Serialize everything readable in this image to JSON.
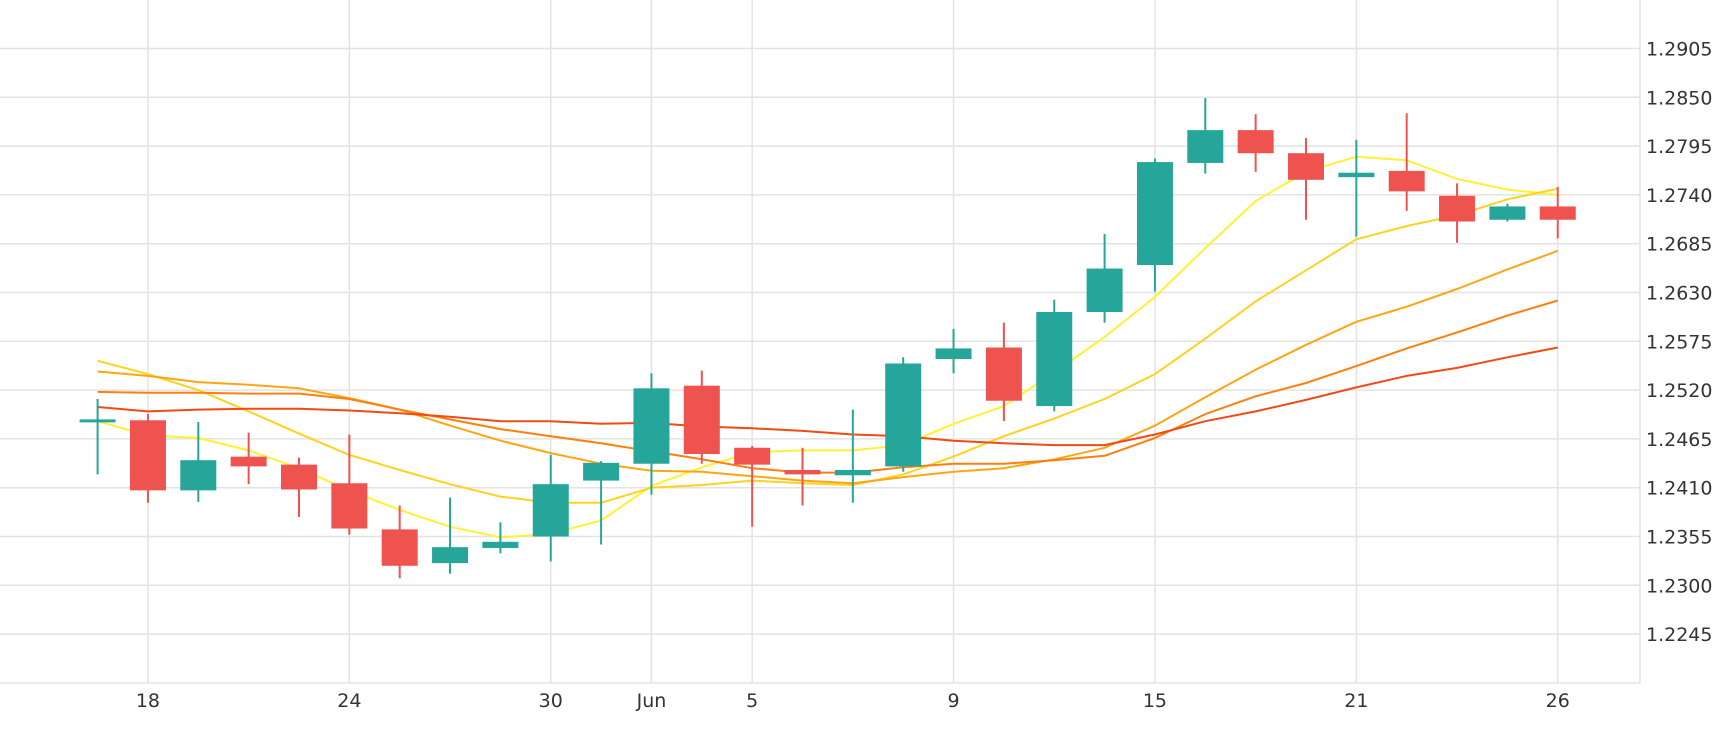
{
  "chart_data": {
    "type": "candlestick",
    "title": "",
    "xlabel": "",
    "ylabel": "",
    "ylim": [
      1.219,
      1.296
    ],
    "grid": true,
    "y_axis_position": "right",
    "y_ticks": [
      "1.2245",
      "1.2300",
      "1.2355",
      "1.2410",
      "1.2465",
      "1.2520",
      "1.2575",
      "1.2630",
      "1.2685",
      "1.2740",
      "1.2795",
      "1.2850",
      "1.2905"
    ],
    "x_ticks": [
      {
        "label": "18",
        "day": 1
      },
      {
        "label": "24",
        "day": 5
      },
      {
        "label": "30",
        "day": 9
      },
      {
        "label": "Jun",
        "day": 11
      },
      {
        "label": "5",
        "day": 13
      },
      {
        "label": "9",
        "day": 17
      },
      {
        "label": "15",
        "day": 21
      },
      {
        "label": "21",
        "day": 25
      },
      {
        "label": "26",
        "day": 29
      }
    ],
    "colors": {
      "up": "#26a69a",
      "down": "#ef5350",
      "grid": "#e3e3e3"
    },
    "candles": [
      {
        "day": 0,
        "open": 1.2487,
        "high": 1.251,
        "low": 1.2425,
        "close": 1.2487
      },
      {
        "day": 1,
        "open": 1.2486,
        "high": 1.2493,
        "low": 1.2393,
        "close": 1.2407
      },
      {
        "day": 2,
        "open": 1.2407,
        "high": 1.2484,
        "low": 1.2394,
        "close": 1.2441
      },
      {
        "day": 3,
        "open": 1.2445,
        "high": 1.2472,
        "low": 1.2414,
        "close": 1.2434
      },
      {
        "day": 4,
        "open": 1.2436,
        "high": 1.2444,
        "low": 1.2377,
        "close": 1.2408
      },
      {
        "day": 5,
        "open": 1.2415,
        "high": 1.247,
        "low": 1.2357,
        "close": 1.2364
      },
      {
        "day": 6,
        "open": 1.2363,
        "high": 1.239,
        "low": 1.2308,
        "close": 1.2322
      },
      {
        "day": 7,
        "open": 1.2325,
        "high": 1.2399,
        "low": 1.2313,
        "close": 1.2343
      },
      {
        "day": 8,
        "open": 1.2342,
        "high": 1.2371,
        "low": 1.2336,
        "close": 1.2349
      },
      {
        "day": 9,
        "open": 1.2355,
        "high": 1.2447,
        "low": 1.2327,
        "close": 1.2414
      },
      {
        "day": 10,
        "open": 1.2418,
        "high": 1.244,
        "low": 1.2346,
        "close": 1.2438
      },
      {
        "day": 11,
        "open": 1.2437,
        "high": 1.2539,
        "low": 1.2402,
        "close": 1.2522
      },
      {
        "day": 12,
        "open": 1.2525,
        "high": 1.2542,
        "low": 1.2437,
        "close": 1.2448
      },
      {
        "day": 13,
        "open": 1.2455,
        "high": 1.2457,
        "low": 1.2366,
        "close": 1.2436
      },
      {
        "day": 14,
        "open": 1.243,
        "high": 1.2455,
        "low": 1.239,
        "close": 1.2425
      },
      {
        "day": 15,
        "open": 1.2424,
        "high": 1.2498,
        "low": 1.2393,
        "close": 1.243
      },
      {
        "day": 16,
        "open": 1.2434,
        "high": 1.2557,
        "low": 1.2428,
        "close": 1.255
      },
      {
        "day": 17,
        "open": 1.2555,
        "high": 1.2589,
        "low": 1.2539,
        "close": 1.2567
      },
      {
        "day": 18,
        "open": 1.2568,
        "high": 1.2596,
        "low": 1.2485,
        "close": 1.2508
      },
      {
        "day": 19,
        "open": 1.2502,
        "high": 1.2622,
        "low": 1.2496,
        "close": 1.2608
      },
      {
        "day": 20,
        "open": 1.2608,
        "high": 1.2696,
        "low": 1.2596,
        "close": 1.2657
      },
      {
        "day": 21,
        "open": 1.2661,
        "high": 1.2781,
        "low": 1.2631,
        "close": 1.2777
      },
      {
        "day": 22,
        "open": 1.2776,
        "high": 1.2849,
        "low": 1.2764,
        "close": 1.2813
      },
      {
        "day": 23,
        "open": 1.2813,
        "high": 1.2831,
        "low": 1.2766,
        "close": 1.2787
      },
      {
        "day": 24,
        "open": 1.2787,
        "high": 1.2804,
        "low": 1.2712,
        "close": 1.2757
      },
      {
        "day": 25,
        "open": 1.276,
        "high": 1.2802,
        "low": 1.2693,
        "close": 1.2765
      },
      {
        "day": 26,
        "open": 1.2767,
        "high": 1.2832,
        "low": 1.2722,
        "close": 1.2744
      },
      {
        "day": 27,
        "open": 1.2739,
        "high": 1.2753,
        "low": 1.2686,
        "close": 1.271
      },
      {
        "day": 28,
        "open": 1.2712,
        "high": 1.273,
        "low": 1.271,
        "close": 1.2727
      },
      {
        "day": 29,
        "open": 1.2727,
        "high": 1.2749,
        "low": 1.2691,
        "close": 1.2712
      }
    ],
    "moving_averages": [
      {
        "color": "#fff133",
        "values": [
          [
            0,
            1.2485
          ],
          [
            1,
            1.2469
          ],
          [
            2,
            1.2466
          ],
          [
            3,
            1.2452
          ],
          [
            4,
            1.2432
          ],
          [
            5,
            1.2407
          ],
          [
            6,
            1.2385
          ],
          [
            7,
            1.2366
          ],
          [
            8,
            1.2354
          ],
          [
            9,
            1.2358
          ],
          [
            10,
            1.2373
          ],
          [
            11,
            1.2412
          ],
          [
            12,
            1.2433
          ],
          [
            13,
            1.245
          ],
          [
            14,
            1.2452
          ],
          [
            15,
            1.2452
          ],
          [
            16,
            1.2458
          ],
          [
            17,
            1.2482
          ],
          [
            18,
            1.2502
          ],
          [
            19,
            1.254
          ],
          [
            20,
            1.258
          ],
          [
            21,
            1.2625
          ],
          [
            22,
            1.268
          ],
          [
            23,
            1.2733
          ],
          [
            24,
            1.2766
          ],
          [
            25,
            1.2783
          ],
          [
            26,
            1.2779
          ],
          [
            27,
            1.2758
          ],
          [
            28,
            1.2746
          ],
          [
            29,
            1.274
          ]
        ]
      },
      {
        "color": "#ffd21f",
        "values": [
          [
            0,
            1.2553
          ],
          [
            1,
            1.2538
          ],
          [
            2,
            1.252
          ],
          [
            3,
            1.2496
          ],
          [
            4,
            1.2471
          ],
          [
            5,
            1.2447
          ],
          [
            6,
            1.243
          ],
          [
            7,
            1.2414
          ],
          [
            8,
            1.24
          ],
          [
            9,
            1.2393
          ],
          [
            10,
            1.2393
          ],
          [
            11,
            1.241
          ],
          [
            12,
            1.2413
          ],
          [
            13,
            1.2418
          ],
          [
            14,
            1.2415
          ],
          [
            15,
            1.2413
          ],
          [
            16,
            1.2425
          ],
          [
            17,
            1.2445
          ],
          [
            18,
            1.2468
          ],
          [
            19,
            1.2488
          ],
          [
            20,
            1.251
          ],
          [
            21,
            1.2538
          ],
          [
            22,
            1.2578
          ],
          [
            23,
            1.262
          ],
          [
            24,
            1.2655
          ],
          [
            25,
            1.269
          ],
          [
            26,
            1.2705
          ],
          [
            27,
            1.2717
          ],
          [
            28,
            1.2735
          ],
          [
            29,
            1.2747
          ]
        ]
      },
      {
        "color": "#ffa514",
        "values": [
          [
            0,
            1.2541
          ],
          [
            1,
            1.2536
          ],
          [
            2,
            1.2529
          ],
          [
            3,
            1.2526
          ],
          [
            4,
            1.2522
          ],
          [
            5,
            1.2511
          ],
          [
            6,
            1.2498
          ],
          [
            7,
            1.248
          ],
          [
            8,
            1.2463
          ],
          [
            9,
            1.2449
          ],
          [
            10,
            1.2437
          ],
          [
            11,
            1.2429
          ],
          [
            12,
            1.2428
          ],
          [
            13,
            1.2423
          ],
          [
            14,
            1.2418
          ],
          [
            15,
            1.2415
          ],
          [
            16,
            1.2422
          ],
          [
            17,
            1.2428
          ],
          [
            18,
            1.2432
          ],
          [
            19,
            1.2442
          ],
          [
            20,
            1.2455
          ],
          [
            21,
            1.248
          ],
          [
            22,
            1.2512
          ],
          [
            23,
            1.2543
          ],
          [
            24,
            1.2571
          ],
          [
            25,
            1.2597
          ],
          [
            26,
            1.2614
          ],
          [
            27,
            1.2634
          ],
          [
            28,
            1.2656
          ],
          [
            29,
            1.2677
          ]
        ]
      },
      {
        "color": "#ff7f0e",
        "values": [
          [
            0,
            1.2518
          ],
          [
            1,
            1.2517
          ],
          [
            2,
            1.2517
          ],
          [
            3,
            1.2516
          ],
          [
            4,
            1.2516
          ],
          [
            5,
            1.251
          ],
          [
            6,
            1.2498
          ],
          [
            7,
            1.2487
          ],
          [
            8,
            1.2476
          ],
          [
            9,
            1.2468
          ],
          [
            10,
            1.246
          ],
          [
            11,
            1.2451
          ],
          [
            12,
            1.2442
          ],
          [
            13,
            1.2432
          ],
          [
            14,
            1.2427
          ],
          [
            15,
            1.2427
          ],
          [
            16,
            1.2433
          ],
          [
            17,
            1.2437
          ],
          [
            18,
            1.2437
          ],
          [
            19,
            1.2441
          ],
          [
            20,
            1.2446
          ],
          [
            21,
            1.2466
          ],
          [
            22,
            1.2493
          ],
          [
            23,
            1.2513
          ],
          [
            24,
            1.2528
          ],
          [
            25,
            1.2547
          ],
          [
            26,
            1.2567
          ],
          [
            27,
            1.2585
          ],
          [
            28,
            1.2604
          ],
          [
            29,
            1.2621
          ]
        ]
      },
      {
        "color": "#f14b15",
        "values": [
          [
            0,
            1.2501
          ],
          [
            1,
            1.2496
          ],
          [
            2,
            1.2498
          ],
          [
            3,
            1.2499
          ],
          [
            4,
            1.2499
          ],
          [
            5,
            1.2497
          ],
          [
            6,
            1.2494
          ],
          [
            7,
            1.249
          ],
          [
            8,
            1.2485
          ],
          [
            9,
            1.2485
          ],
          [
            10,
            1.2482
          ],
          [
            11,
            1.2483
          ],
          [
            12,
            1.2479
          ],
          [
            13,
            1.2477
          ],
          [
            14,
            1.2474
          ],
          [
            15,
            1.247
          ],
          [
            16,
            1.2468
          ],
          [
            17,
            1.2463
          ],
          [
            18,
            1.246
          ],
          [
            19,
            1.2458
          ],
          [
            20,
            1.2458
          ],
          [
            21,
            1.247
          ],
          [
            22,
            1.2485
          ],
          [
            23,
            1.2496
          ],
          [
            24,
            1.2509
          ],
          [
            25,
            1.2523
          ],
          [
            26,
            1.2536
          ],
          [
            27,
            1.2545
          ],
          [
            28,
            1.2557
          ],
          [
            29,
            1.2568
          ]
        ]
      }
    ]
  }
}
